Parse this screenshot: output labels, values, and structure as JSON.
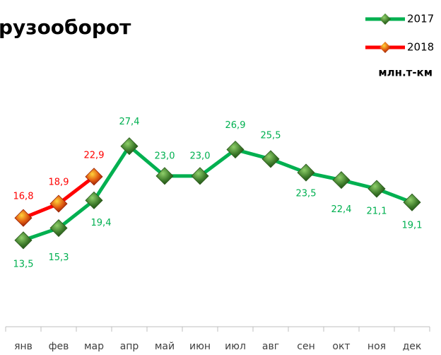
{
  "chart_data": {
    "type": "line",
    "title": "рузооборот",
    "unit_label": "млн.т-км",
    "categories": [
      "янв",
      "фев",
      "мар",
      "апр",
      "май",
      "июн",
      "июл",
      "авг",
      "сен",
      "окт",
      "ноя",
      "дек"
    ],
    "series": [
      {
        "name": "2017",
        "color": "#00b050",
        "values": [
          13.5,
          15.3,
          19.4,
          27.4,
          23.0,
          23.0,
          26.9,
          25.5,
          23.5,
          22.4,
          21.1,
          19.1
        ],
        "value_labels": [
          "13,5",
          "15,3",
          "19,4",
          "27,4",
          "23,0",
          "23,0",
          "26,9",
          "25,5",
          "23,5",
          "22,4",
          "21,1",
          "19,1"
        ]
      },
      {
        "name": "2018",
        "color": "#ff0000",
        "values": [
          16.8,
          18.9,
          22.9,
          null,
          null,
          null,
          null,
          null,
          null,
          null,
          null,
          null
        ],
        "value_labels": [
          "16,8",
          "18,9",
          "22,9",
          null,
          null,
          null,
          null,
          null,
          null,
          null,
          null,
          null
        ]
      }
    ],
    "ylim": [
      0,
      35
    ]
  }
}
